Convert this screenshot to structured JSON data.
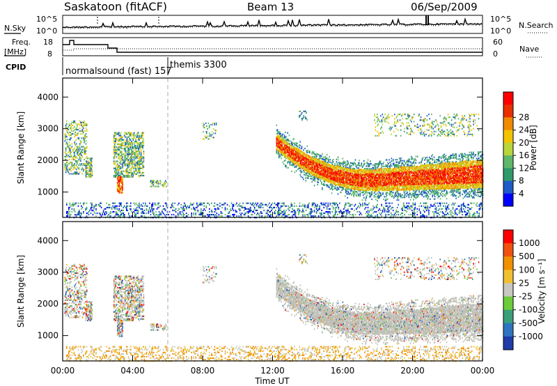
{
  "header": {
    "station": "Saskatoon (fitACF)",
    "beam": "Beam 13",
    "date": "06/Sep/2009"
  },
  "panels": {
    "noise": {
      "left_label": "N.Sky",
      "right_label": "N.Search",
      "left_ticks": [
        "10^5",
        "10^0"
      ],
      "right_ticks": [
        "10^5",
        "10^0"
      ]
    },
    "freq": {
      "left_label_1": "Freq.",
      "left_label_2": "[MHz]",
      "right_label": "Nave",
      "left_ticks": [
        "18",
        "8"
      ],
      "right_ticks": [
        "60",
        "0"
      ]
    },
    "cpid": {
      "label": "CPID",
      "mode1": "normalsound (fast) 157",
      "mode2": "themis 3300"
    }
  },
  "chart_data": [
    {
      "type": "heatmap",
      "name": "power",
      "ylabel": "Slant Range [km]",
      "ylim": [
        200,
        4600
      ],
      "yticks": [
        "1000",
        "2000",
        "3000",
        "4000"
      ],
      "colorbar_label": "Power [dB]",
      "colorbar_ticks": [
        "4",
        "8",
        "12",
        "16",
        "20",
        "24",
        "28"
      ],
      "colors": [
        "#0000ff",
        "#1f5bc7",
        "#2f9a6a",
        "#5fb76a",
        "#b8d53b",
        "#f2c400",
        "#f08a00",
        "#e83000",
        "#ff0000"
      ]
    },
    {
      "type": "heatmap",
      "name": "velocity",
      "ylabel": "Slant Range [km]",
      "ylim": [
        200,
        4600
      ],
      "yticks": [
        "1000",
        "2000",
        "3000",
        "4000"
      ],
      "colorbar_label": "Velocity [m s⁻¹]",
      "colorbar_ticks": [
        "1000",
        "500",
        "100",
        "25",
        "-25",
        "-100",
        "-500",
        "-1000"
      ],
      "colors": [
        "#1f3ca8",
        "#2f74c0",
        "#3aa07a",
        "#6ccc3a",
        "#c8c8c0",
        "#f0c030",
        "#f09000",
        "#f05010",
        "#ff0000"
      ]
    }
  ],
  "time_axis": {
    "label": "Time UT",
    "ticks": [
      "00:00",
      "04:00",
      "08:00",
      "12:00",
      "16:00",
      "20:00",
      "00:00"
    ]
  },
  "colors": {
    "ground_scatter": "#c0c0b8",
    "frame": "#000000"
  }
}
